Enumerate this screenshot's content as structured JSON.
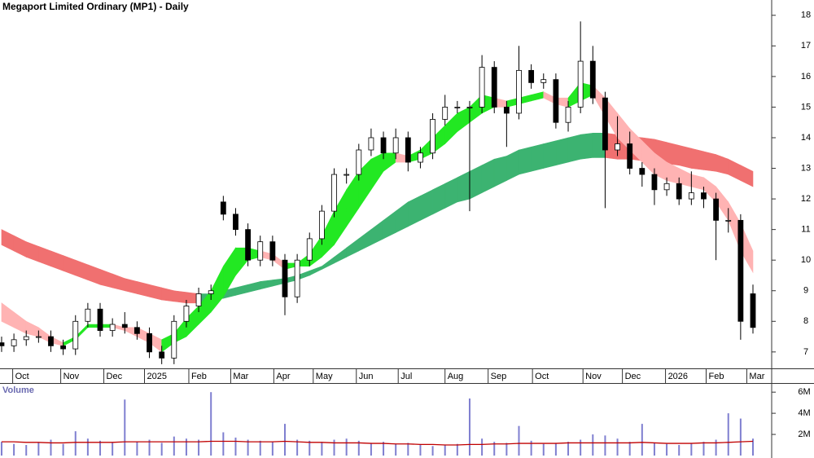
{
  "chart_data": [
    {
      "type": "candlestick",
      "title": "Megaport Limited Ordinary (MP1) - Daily",
      "x": [
        0,
        1,
        2,
        3,
        4,
        5,
        6,
        7,
        8,
        9,
        10,
        11,
        12,
        13,
        14,
        15,
        16,
        17,
        18,
        19,
        20,
        21,
        22,
        23,
        24,
        25,
        26,
        27,
        28,
        29,
        30,
        31,
        32,
        33,
        34,
        35,
        36,
        37,
        38,
        39,
        40,
        41,
        42,
        43,
        44,
        45,
        46,
        47,
        48,
        49,
        50,
        51,
        52,
        53,
        54,
        55,
        56,
        57,
        58,
        59,
        60,
        61
      ],
      "open": [
        7.3,
        7.2,
        7.4,
        7.5,
        7.5,
        7.2,
        7.1,
        8.0,
        8.4,
        7.7,
        7.9,
        7.8,
        7.6,
        7.0,
        6.8,
        8.0,
        8.5,
        8.9,
        11.9,
        11.5,
        11.0,
        10.0,
        10.6,
        10.0,
        8.8,
        10.0,
        10.7,
        11.6,
        12.8,
        12.8,
        13.6,
        14.0,
        13.5,
        14.0,
        13.2,
        13.5,
        14.6,
        15.0,
        15.0,
        15.0,
        16.3,
        15.0,
        14.8,
        16.2,
        15.8,
        15.9,
        14.5,
        15.0,
        16.5,
        15.3,
        13.6,
        13.8,
        13.0,
        12.8,
        12.3,
        12.5,
        12.0,
        12.2,
        12.0,
        11.3,
        11.3,
        8.9
      ],
      "high": [
        7.5,
        7.6,
        7.7,
        7.7,
        7.7,
        7.4,
        8.2,
        8.6,
        8.6,
        8.1,
        8.3,
        8.0,
        7.8,
        7.2,
        8.2,
        8.7,
        9.1,
        9.2,
        12.1,
        11.7,
        11.2,
        10.8,
        10.8,
        10.2,
        10.2,
        10.9,
        11.8,
        13.0,
        13.0,
        13.8,
        14.3,
        14.2,
        14.3,
        14.2,
        13.7,
        14.8,
        15.4,
        15.2,
        15.2,
        16.7,
        16.5,
        15.2,
        17.0,
        16.4,
        16.1,
        16.1,
        15.2,
        17.8,
        17.0,
        15.5,
        14.7,
        14.2,
        13.2,
        13.0,
        12.7,
        12.7,
        12.9,
        12.4,
        12.2,
        11.7,
        11.5,
        9.2
      ],
      "low": [
        7.0,
        7.0,
        7.2,
        7.3,
        7.0,
        6.9,
        6.9,
        7.8,
        7.5,
        7.5,
        7.6,
        7.4,
        6.8,
        6.6,
        6.6,
        7.8,
        8.3,
        8.7,
        11.3,
        10.8,
        9.8,
        9.8,
        9.8,
        8.2,
        8.6,
        9.8,
        10.5,
        11.4,
        12.5,
        12.6,
        13.4,
        13.3,
        13.3,
        12.9,
        13.0,
        13.3,
        14.4,
        14.8,
        11.6,
        14.8,
        14.8,
        13.7,
        14.6,
        15.6,
        15.6,
        14.3,
        14.2,
        14.8,
        15.1,
        11.7,
        13.4,
        12.8,
        12.4,
        11.8,
        12.1,
        11.8,
        11.8,
        11.7,
        10.0,
        10.9,
        7.4,
        7.6
      ],
      "close": [
        7.2,
        7.4,
        7.5,
        7.5,
        7.2,
        7.1,
        8.0,
        8.4,
        7.7,
        7.9,
        7.8,
        7.6,
        7.0,
        6.8,
        8.0,
        8.5,
        8.9,
        9.0,
        11.5,
        11.0,
        10.0,
        10.6,
        10.0,
        8.8,
        10.0,
        10.7,
        11.6,
        12.8,
        12.8,
        13.6,
        14.0,
        13.5,
        14.0,
        13.2,
        13.5,
        14.6,
        15.0,
        15.0,
        15.0,
        16.3,
        15.0,
        14.8,
        16.2,
        15.8,
        15.9,
        14.5,
        15.0,
        16.5,
        15.3,
        13.6,
        13.8,
        13.0,
        12.8,
        12.3,
        12.5,
        12.0,
        12.2,
        12.0,
        11.3,
        11.3,
        8.0,
        7.8
      ],
      "up_color": "#ffffff",
      "down_color": "#000000",
      "bands": [
        {
          "upper": [
            11.0,
            10.8,
            10.6,
            10.45,
            10.3,
            10.15,
            10.0,
            9.85,
            9.7,
            9.55,
            9.4,
            9.3,
            9.2,
            9.1,
            9.0,
            8.95,
            8.9,
            8.9,
            9.0,
            9.1,
            9.2,
            9.3,
            9.35,
            9.4,
            9.5,
            9.65,
            9.8,
            10.1,
            10.4,
            10.7,
            11.0,
            11.3,
            11.6,
            11.9,
            12.1,
            12.3,
            12.5,
            12.7,
            12.9,
            13.1,
            13.3,
            13.4,
            13.6,
            13.7,
            13.8,
            13.9,
            14.0,
            14.1,
            14.15,
            14.15,
            14.1,
            14.05,
            14.0,
            13.95,
            13.85,
            13.75,
            13.65,
            13.55,
            13.45,
            13.3,
            13.1,
            12.9
          ],
          "lower": [
            10.5,
            10.3,
            10.1,
            9.95,
            9.8,
            9.65,
            9.5,
            9.35,
            9.2,
            9.1,
            9.0,
            8.9,
            8.8,
            8.7,
            8.65,
            8.6,
            8.6,
            8.7,
            8.75,
            8.85,
            8.95,
            9.05,
            9.15,
            9.25,
            9.35,
            9.5,
            9.7,
            9.9,
            10.1,
            10.3,
            10.5,
            10.7,
            10.9,
            11.1,
            11.3,
            11.5,
            11.7,
            11.9,
            12.0,
            12.2,
            12.4,
            12.6,
            12.8,
            12.9,
            13.0,
            13.1,
            13.2,
            13.3,
            13.35,
            13.35,
            13.3,
            13.3,
            13.25,
            13.2,
            13.15,
            13.1,
            13.0,
            12.95,
            12.9,
            12.8,
            12.6,
            12.4
          ],
          "up_color": "#3cb371",
          "down_color": "#f07070"
        },
        {
          "upper": [
            8.6,
            8.3,
            8.0,
            7.8,
            7.5,
            7.3,
            7.5,
            7.9,
            7.9,
            7.9,
            7.8,
            7.8,
            7.6,
            7.4,
            7.6,
            8.1,
            8.5,
            9.0,
            9.8,
            10.4,
            10.4,
            10.3,
            10.2,
            9.9,
            9.9,
            10.2,
            10.8,
            11.6,
            12.3,
            12.9,
            13.3,
            13.5,
            13.5,
            13.4,
            13.6,
            14.0,
            14.4,
            14.8,
            15.0,
            15.4,
            15.3,
            15.2,
            15.3,
            15.4,
            15.5,
            15.3,
            15.3,
            15.8,
            15.7,
            15.3,
            14.8,
            14.3,
            13.9,
            13.5,
            13.2,
            13.0,
            12.8,
            12.7,
            12.4,
            11.9,
            11.2,
            10.3
          ],
          "lower": [
            8.0,
            7.8,
            7.6,
            7.5,
            7.3,
            7.2,
            7.4,
            7.8,
            7.8,
            7.8,
            7.7,
            7.5,
            7.3,
            7.0,
            7.3,
            7.5,
            7.9,
            8.3,
            8.8,
            9.5,
            10.0,
            10.1,
            10.0,
            9.7,
            9.8,
            9.8,
            10.1,
            10.5,
            11.1,
            11.7,
            12.3,
            12.9,
            13.2,
            13.2,
            13.3,
            13.5,
            13.8,
            14.2,
            14.5,
            14.8,
            15.0,
            15.0,
            15.1,
            15.2,
            15.3,
            15.1,
            15.0,
            15.2,
            15.4,
            14.7,
            14.0,
            13.6,
            13.2,
            12.8,
            12.6,
            12.5,
            12.4,
            12.3,
            11.9,
            11.3,
            10.3,
            9.6
          ],
          "up_color": "#22e822",
          "down_color": "#ffb3b3"
        }
      ],
      "xlim": [
        -0.13,
        62.52
      ],
      "xticks": [
        {
          "value": 0.9,
          "label": "Oct"
        },
        {
          "value": 4.8,
          "label": "Nov"
        },
        {
          "value": 8.3,
          "label": "Dec"
        },
        {
          "value": 11.6,
          "label": "2025"
        },
        {
          "value": 15.2,
          "label": "Feb"
        },
        {
          "value": 18.6,
          "label": "Mar"
        },
        {
          "value": 22.1,
          "label": "Apr"
        },
        {
          "value": 25.3,
          "label": "May"
        },
        {
          "value": 28.8,
          "label": "Jun"
        },
        {
          "value": 32.2,
          "label": "Jul"
        },
        {
          "value": 36.0,
          "label": "Aug"
        },
        {
          "value": 39.5,
          "label": "Sep"
        },
        {
          "value": 43.1,
          "label": "Oct"
        },
        {
          "value": 47.2,
          "label": "Nov"
        },
        {
          "value": 50.4,
          "label": "Dec"
        },
        {
          "value": 53.9,
          "label": "2026"
        },
        {
          "value": 57.2,
          "label": "Feb"
        },
        {
          "value": 60.5,
          "label": "Mar"
        }
      ],
      "ylim": [
        6.45,
        18.5
      ],
      "yticks": [
        7,
        8,
        9,
        10,
        11,
        12,
        13,
        14,
        15,
        16,
        17,
        18
      ]
    },
    {
      "type": "bar",
      "title": "Volume",
      "color": "#7f7fd0",
      "values": [
        1300000,
        1100000,
        1000000,
        1200000,
        1500000,
        1100000,
        2300000,
        1600000,
        1400000,
        1200000,
        5300000,
        1300000,
        1500000,
        1200000,
        1800000,
        1600000,
        1500000,
        6000000,
        2200000,
        1700000,
        1500000,
        1400000,
        1300000,
        3000000,
        1500000,
        1400000,
        1300000,
        1500000,
        1600000,
        1400000,
        1200000,
        1300000,
        1100000,
        1200000,
        1000000,
        900000,
        1000000,
        1100000,
        5400000,
        1600000,
        1300000,
        1200000,
        2800000,
        1400000,
        1100000,
        1200000,
        1300000,
        1500000,
        2000000,
        1900000,
        1600000,
        1300000,
        3000000,
        1200000,
        1100000,
        1000000,
        1200000,
        1300000,
        1500000,
        4000000,
        3500000,
        1600000
      ],
      "average": {
        "color": "#c00000",
        "values": [
          1300000,
          1300000,
          1250000,
          1250000,
          1200000,
          1200000,
          1250000,
          1250000,
          1250000,
          1250000,
          1300000,
          1300000,
          1300000,
          1300000,
          1300000,
          1300000,
          1300000,
          1350000,
          1350000,
          1350000,
          1300000,
          1300000,
          1300000,
          1350000,
          1300000,
          1250000,
          1250000,
          1200000,
          1200000,
          1200000,
          1150000,
          1150000,
          1100000,
          1100000,
          1050000,
          1050000,
          1000000,
          1000000,
          1050000,
          1050000,
          1100000,
          1100000,
          1150000,
          1150000,
          1150000,
          1150000,
          1200000,
          1200000,
          1200000,
          1200000,
          1200000,
          1200000,
          1250000,
          1200000,
          1150000,
          1150000,
          1150000,
          1200000,
          1200000,
          1250000,
          1300000,
          1350000
        ]
      },
      "ylim": [
        0,
        6400000
      ],
      "yticks": [
        {
          "value": 2000000,
          "label": "2M"
        },
        {
          "value": 4000000,
          "label": "4M"
        },
        {
          "value": 6000000,
          "label": "6M"
        }
      ]
    }
  ]
}
